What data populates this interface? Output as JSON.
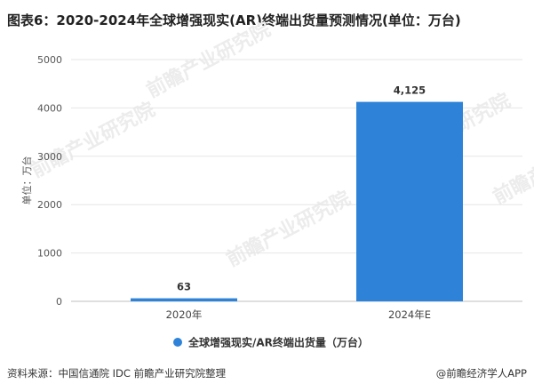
{
  "chart_data": {
    "type": "bar",
    "title": "图表6：2020-2024年全球增强现实(AR)终端出货量预测情况(单位：万台)",
    "categories": [
      "2020年",
      "2024年E"
    ],
    "series": [
      {
        "name": "全球增强现实/AR终端出货量（万台）",
        "values": [
          63,
          4125
        ],
        "labels": [
          "63",
          "4,125"
        ],
        "color": "#2e83d8"
      }
    ],
    "xlabel": "",
    "ylabel": "单位：万台",
    "ylim": [
      0,
      5000
    ],
    "yticks": [
      "0",
      "1000",
      "2000",
      "3000",
      "4000",
      "5000"
    ],
    "grid": true,
    "legend_position": "bottom"
  },
  "footer": {
    "source": "资料来源：中国信通院 IDC 前瞻产业研究院整理",
    "brand": "前瞻经济学人APP"
  },
  "watermark": {
    "text": "前瞻产业研究院"
  },
  "colors": {
    "bar": "#2e83d8",
    "grid": "#e6e6e6",
    "axis": "#bfbfbf",
    "watermark": "#ececec"
  }
}
